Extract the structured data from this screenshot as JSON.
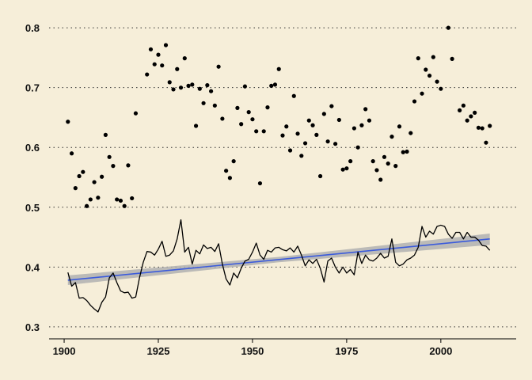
{
  "chart_data": {
    "type": "scatter",
    "title": "",
    "xlabel": "",
    "ylabel": "",
    "xlim": [
      1896,
      2020
    ],
    "ylim": [
      0.28,
      0.82
    ],
    "x_ticks": [
      1900,
      1925,
      1950,
      1975,
      2000
    ],
    "y_ticks": [
      0.3,
      0.4,
      0.5,
      0.6,
      0.7,
      0.8
    ],
    "x_tick_labels": [
      "1900",
      "1925",
      "1950",
      "1975",
      "2000"
    ],
    "y_tick_labels": [
      "0.3",
      "0.4",
      "0.5",
      "0.6",
      "0.7",
      "0.8"
    ],
    "grid": "horizontal dotted",
    "series": [
      {
        "kind": "points",
        "color": "#000000",
        "points": [
          [
            1901,
            0.643
          ],
          [
            1902,
            0.59
          ],
          [
            1903,
            0.532
          ],
          [
            1904,
            0.552
          ],
          [
            1905,
            0.559
          ],
          [
            1906,
            0.502
          ],
          [
            1907,
            0.513
          ],
          [
            1908,
            0.542
          ],
          [
            1909,
            0.516
          ],
          [
            1910,
            0.551
          ],
          [
            1911,
            0.621
          ],
          [
            1912,
            0.584
          ],
          [
            1913,
            0.569
          ],
          [
            1914,
            0.513
          ],
          [
            1915,
            0.511
          ],
          [
            1916,
            0.502
          ],
          [
            1917,
            0.57
          ],
          [
            1918,
            0.515
          ],
          [
            1919,
            0.657
          ],
          [
            1922,
            0.722
          ],
          [
            1923,
            0.764
          ],
          [
            1924,
            0.739
          ],
          [
            1925,
            0.755
          ],
          [
            1926,
            0.737
          ],
          [
            1927,
            0.771
          ],
          [
            1928,
            0.709
          ],
          [
            1929,
            0.697
          ],
          [
            1930,
            0.731
          ],
          [
            1931,
            0.7
          ],
          [
            1932,
            0.749
          ],
          [
            1933,
            0.703
          ],
          [
            1934,
            0.705
          ],
          [
            1935,
            0.636
          ],
          [
            1936,
            0.698
          ],
          [
            1937,
            0.674
          ],
          [
            1938,
            0.704
          ],
          [
            1939,
            0.694
          ],
          [
            1940,
            0.67
          ],
          [
            1941,
            0.735
          ],
          [
            1942,
            0.648
          ],
          [
            1943,
            0.561
          ],
          [
            1944,
            0.549
          ],
          [
            1945,
            0.577
          ],
          [
            1946,
            0.666
          ],
          [
            1947,
            0.639
          ],
          [
            1948,
            0.702
          ],
          [
            1949,
            0.659
          ],
          [
            1950,
            0.647
          ],
          [
            1951,
            0.627
          ],
          [
            1952,
            0.54
          ],
          [
            1953,
            0.627
          ],
          [
            1954,
            0.667
          ],
          [
            1955,
            0.703
          ],
          [
            1956,
            0.705
          ],
          [
            1957,
            0.731
          ],
          [
            1958,
            0.62
          ],
          [
            1959,
            0.635
          ],
          [
            1960,
            0.595
          ],
          [
            1961,
            0.686
          ],
          [
            1962,
            0.623
          ],
          [
            1963,
            0.586
          ],
          [
            1964,
            0.607
          ],
          [
            1965,
            0.645
          ],
          [
            1966,
            0.637
          ],
          [
            1967,
            0.621
          ],
          [
            1968,
            0.552
          ],
          [
            1969,
            0.656
          ],
          [
            1970,
            0.61
          ],
          [
            1971,
            0.669
          ],
          [
            1972,
            0.606
          ],
          [
            1973,
            0.646
          ],
          [
            1974,
            0.563
          ],
          [
            1975,
            0.565
          ],
          [
            1976,
            0.577
          ],
          [
            1977,
            0.632
          ],
          [
            1978,
            0.6
          ],
          [
            1979,
            0.637
          ],
          [
            1980,
            0.664
          ],
          [
            1981,
            0.645
          ],
          [
            1982,
            0.577
          ],
          [
            1983,
            0.562
          ],
          [
            1984,
            0.546
          ],
          [
            1985,
            0.584
          ],
          [
            1986,
            0.573
          ],
          [
            1987,
            0.618
          ],
          [
            1988,
            0.569
          ],
          [
            1989,
            0.635
          ],
          [
            1990,
            0.592
          ],
          [
            1991,
            0.593
          ],
          [
            1992,
            0.624
          ],
          [
            1993,
            0.677
          ],
          [
            1994,
            0.749
          ],
          [
            1995,
            0.69
          ],
          [
            1996,
            0.73
          ],
          [
            1997,
            0.72
          ],
          [
            1998,
            0.751
          ],
          [
            1999,
            0.71
          ],
          [
            2000,
            0.698
          ],
          [
            2002,
            0.8
          ],
          [
            2003,
            0.748
          ],
          [
            2005,
            0.662
          ],
          [
            2006,
            0.67
          ],
          [
            2007,
            0.645
          ],
          [
            2008,
            0.652
          ],
          [
            2009,
            0.658
          ],
          [
            2010,
            0.633
          ],
          [
            2011,
            0.632
          ],
          [
            2012,
            0.608
          ],
          [
            2013,
            0.636
          ]
        ]
      },
      {
        "kind": "line",
        "color": "#000000",
        "points": [
          [
            1901,
            0.391
          ],
          [
            1902,
            0.368
          ],
          [
            1903,
            0.374
          ],
          [
            1904,
            0.348
          ],
          [
            1905,
            0.349
          ],
          [
            1906,
            0.344
          ],
          [
            1907,
            0.336
          ],
          [
            1908,
            0.33
          ],
          [
            1909,
            0.325
          ],
          [
            1910,
            0.341
          ],
          [
            1911,
            0.35
          ],
          [
            1912,
            0.382
          ],
          [
            1913,
            0.39
          ],
          [
            1914,
            0.374
          ],
          [
            1915,
            0.36
          ],
          [
            1916,
            0.357
          ],
          [
            1917,
            0.358
          ],
          [
            1918,
            0.348
          ],
          [
            1919,
            0.35
          ],
          [
            1920,
            0.382
          ],
          [
            1921,
            0.408
          ],
          [
            1922,
            0.426
          ],
          [
            1923,
            0.425
          ],
          [
            1924,
            0.42
          ],
          [
            1925,
            0.43
          ],
          [
            1926,
            0.443
          ],
          [
            1927,
            0.418
          ],
          [
            1928,
            0.42
          ],
          [
            1929,
            0.427
          ],
          [
            1930,
            0.447
          ],
          [
            1931,
            0.479
          ],
          [
            1932,
            0.425
          ],
          [
            1933,
            0.433
          ],
          [
            1934,
            0.405
          ],
          [
            1935,
            0.428
          ],
          [
            1936,
            0.422
          ],
          [
            1937,
            0.437
          ],
          [
            1938,
            0.431
          ],
          [
            1939,
            0.433
          ],
          [
            1940,
            0.426
          ],
          [
            1941,
            0.439
          ],
          [
            1942,
            0.405
          ],
          [
            1943,
            0.38
          ],
          [
            1944,
            0.37
          ],
          [
            1945,
            0.39
          ],
          [
            1946,
            0.382
          ],
          [
            1947,
            0.398
          ],
          [
            1948,
            0.41
          ],
          [
            1949,
            0.413
          ],
          [
            1950,
            0.425
          ],
          [
            1951,
            0.44
          ],
          [
            1952,
            0.42
          ],
          [
            1953,
            0.413
          ],
          [
            1954,
            0.428
          ],
          [
            1955,
            0.425
          ],
          [
            1956,
            0.432
          ],
          [
            1957,
            0.433
          ],
          [
            1958,
            0.429
          ],
          [
            1959,
            0.427
          ],
          [
            1960,
            0.432
          ],
          [
            1961,
            0.425
          ],
          [
            1962,
            0.435
          ],
          [
            1963,
            0.42
          ],
          [
            1964,
            0.402
          ],
          [
            1965,
            0.412
          ],
          [
            1966,
            0.406
          ],
          [
            1967,
            0.413
          ],
          [
            1968,
            0.398
          ],
          [
            1969,
            0.375
          ],
          [
            1970,
            0.41
          ],
          [
            1971,
            0.415
          ],
          [
            1972,
            0.4
          ],
          [
            1973,
            0.39
          ],
          [
            1974,
            0.4
          ],
          [
            1975,
            0.39
          ],
          [
            1976,
            0.396
          ],
          [
            1977,
            0.387
          ],
          [
            1978,
            0.425
          ],
          [
            1979,
            0.406
          ],
          [
            1980,
            0.42
          ],
          [
            1981,
            0.412
          ],
          [
            1982,
            0.41
          ],
          [
            1983,
            0.415
          ],
          [
            1984,
            0.423
          ],
          [
            1985,
            0.415
          ],
          [
            1986,
            0.418
          ],
          [
            1987,
            0.447
          ],
          [
            1988,
            0.408
          ],
          [
            1989,
            0.402
          ],
          [
            1990,
            0.405
          ],
          [
            1991,
            0.412
          ],
          [
            1992,
            0.415
          ],
          [
            1993,
            0.42
          ],
          [
            1994,
            0.433
          ],
          [
            1995,
            0.468
          ],
          [
            1996,
            0.45
          ],
          [
            1997,
            0.46
          ],
          [
            1998,
            0.455
          ],
          [
            1999,
            0.468
          ],
          [
            2000,
            0.47
          ],
          [
            2001,
            0.468
          ],
          [
            2002,
            0.455
          ],
          [
            2003,
            0.448
          ],
          [
            2004,
            0.458
          ],
          [
            2005,
            0.458
          ],
          [
            2006,
            0.447
          ],
          [
            2007,
            0.458
          ],
          [
            2008,
            0.45
          ],
          [
            2009,
            0.45
          ],
          [
            2010,
            0.445
          ],
          [
            2011,
            0.436
          ],
          [
            2012,
            0.435
          ],
          [
            2013,
            0.428
          ]
        ]
      },
      {
        "kind": "trend",
        "color": "#3b5bdb",
        "band_color": "#b0b0b0",
        "points": [
          [
            1901,
            0.378
          ],
          [
            2013,
            0.447
          ]
        ],
        "band": [
          [
            1901,
            0.37,
            0.386
          ],
          [
            1957,
            0.408,
            0.417
          ],
          [
            2013,
            0.437,
            0.456
          ]
        ]
      }
    ]
  }
}
